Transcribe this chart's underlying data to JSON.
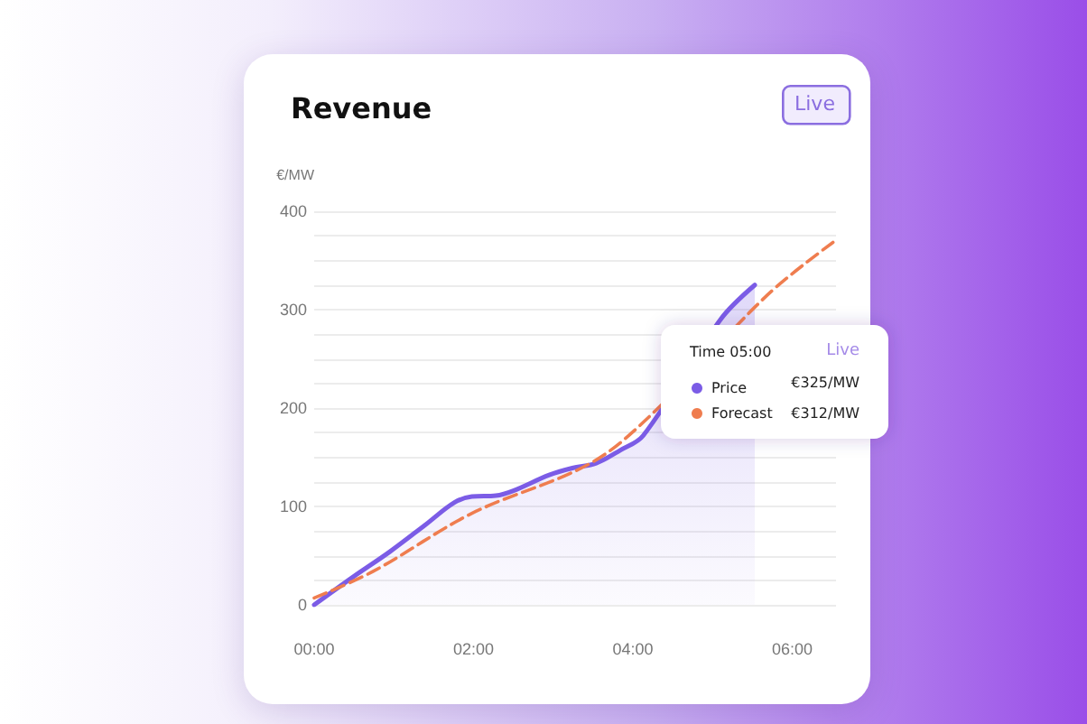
{
  "chart_data": {
    "type": "line",
    "title": "Revenue",
    "ylabel": "€/MW",
    "annotations": [
      "Live",
      "Time 05:00",
      "Live",
      "€325/MW",
      "€312/MW"
    ],
    "xlim": [
      0,
      6.55
    ],
    "xticks": [
      {
        "value": 0,
        "label": "00:00"
      },
      {
        "value": 2,
        "label": "02:00"
      },
      {
        "value": 4,
        "label": "04:00"
      },
      {
        "value": 6,
        "label": "06:00"
      }
    ],
    "ylim": [
      0,
      400
    ],
    "yticks": [
      0,
      {
        "value": 25,
        "label": null
      },
      {
        "value": 50,
        "label": null
      },
      {
        "value": 75,
        "label": null
      },
      100,
      {
        "value": 125,
        "label": null
      },
      {
        "value": 150,
        "label": null
      },
      {
        "value": 175,
        "label": null
      },
      200,
      {
        "value": 225,
        "label": null
      },
      {
        "value": 250,
        "label": null
      },
      {
        "value": 275,
        "label": null
      },
      300,
      {
        "value": 325,
        "label": null
      },
      {
        "value": 350,
        "label": null
      },
      {
        "value": 375,
        "label": null
      },
      400
    ],
    "grid": "y",
    "legend": "right",
    "marker": "none",
    "series": [
      {
        "name": "Price",
        "type": "area",
        "color": "#7b5ce6",
        "line_style": "solid",
        "x": [
          0,
          0.5,
          0.95,
          1.39,
          1.76,
          1.98,
          2.28,
          2.5,
          2.95,
          3.24,
          3.54,
          3.84,
          4.13,
          4.43,
          4.65,
          4.87,
          5.1,
          5.53
        ],
        "values": [
          0,
          29,
          54,
          81,
          104,
          110,
          111,
          116,
          132,
          139,
          144,
          157,
          172,
          null,
          null,
          null,
          290,
          325
        ]
      },
      {
        "name": "Forecast",
        "type": "line",
        "color": "#ef7d4f",
        "line_style": "dashed",
        "x": [
          0,
          0.74,
          1.98,
          3.47,
          4.28,
          5.1,
          5.69,
          6.54
        ],
        "values": [
          7,
          34,
          93,
          144,
          197,
          null,
          315,
          370
        ]
      }
    ]
  }
}
